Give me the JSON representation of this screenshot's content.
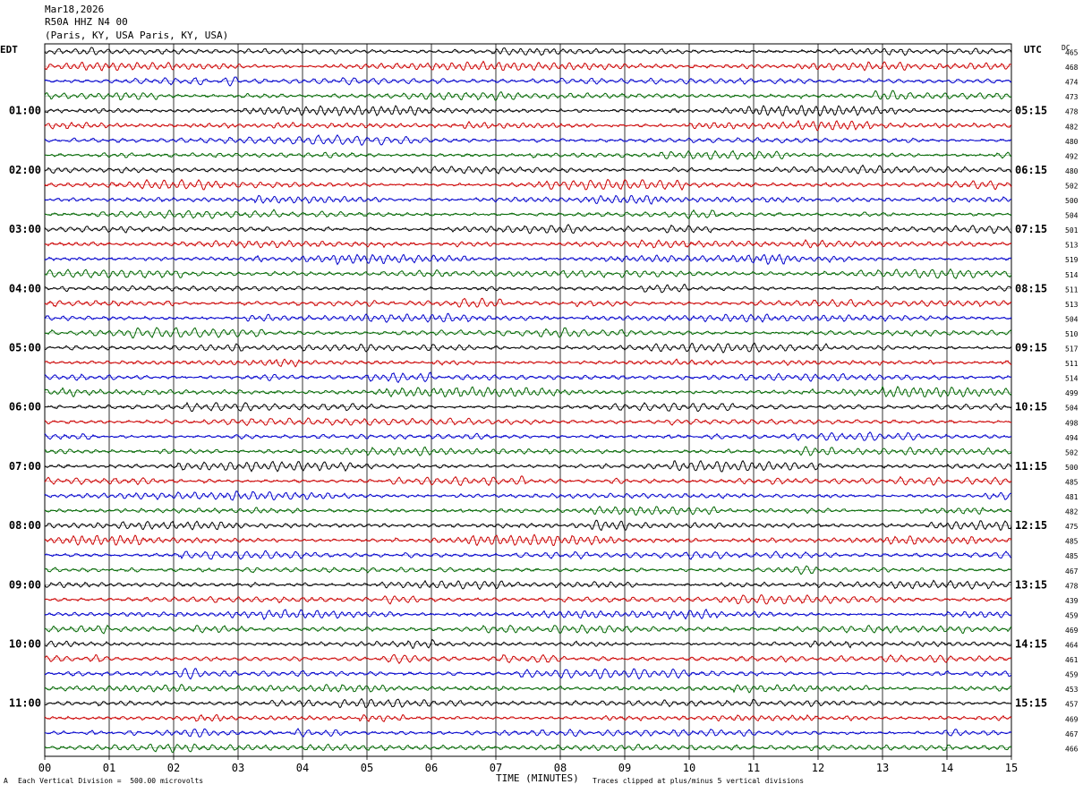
{
  "header": {
    "date": "Mar18,2026",
    "station": "R50A HHZ N4 00",
    "location": "(Paris, KY, USA Paris, KY, USA)"
  },
  "left_tz": "EDT",
  "right_tz": "UTC",
  "dc_label": "DC",
  "footer": {
    "scale_note": "Each Vertical Division =  500.00 microvolts",
    "axis_title": "TIME (MINUTES)",
    "clip_note": "Traces clipped at plus/minus 5 vertical divisions",
    "corner_mark": "A"
  },
  "colors": {
    "c1": "#000000",
    "c2": "#cc0000",
    "c3": "#0000cc",
    "c4": "#006600",
    "grid": "#000000"
  },
  "chart_data": {
    "type": "line",
    "title": "R50A HHZ N4 00",
    "xlabel": "TIME (MINUTES)",
    "xlim": [
      0,
      15
    ],
    "x_ticks": [
      "00",
      "01",
      "02",
      "03",
      "04",
      "05",
      "06",
      "07",
      "08",
      "09",
      "10",
      "11",
      "12",
      "13",
      "14",
      "15"
    ],
    "left_hour_labels": [
      "01:00",
      "02:00",
      "03:00",
      "04:00",
      "05:00",
      "06:00",
      "07:00",
      "08:00",
      "09:00",
      "10:00",
      "11:00"
    ],
    "right_hour_labels": [
      "05:15",
      "06:15",
      "07:15",
      "08:15",
      "09:15",
      "10:15",
      "11:15",
      "12:15",
      "13:15",
      "14:15",
      "15:15"
    ],
    "trace_colors_cycle": [
      "black",
      "red",
      "blue",
      "green"
    ],
    "traces_per_hour": 4,
    "trace_count": 48,
    "dc_offsets": [
      465,
      468,
      474,
      473,
      478,
      482,
      480,
      492,
      480,
      502,
      500,
      504,
      501,
      513,
      519,
      514,
      511,
      513,
      504,
      510,
      517,
      511,
      514,
      499,
      504,
      498,
      494,
      502,
      500,
      485,
      481,
      482,
      475,
      485,
      485,
      467,
      478,
      439,
      459,
      469,
      464,
      461,
      459,
      453,
      457,
      469,
      467,
      466
    ],
    "vertical_division_microvolts": 500.0,
    "clip_divisions": 5
  }
}
